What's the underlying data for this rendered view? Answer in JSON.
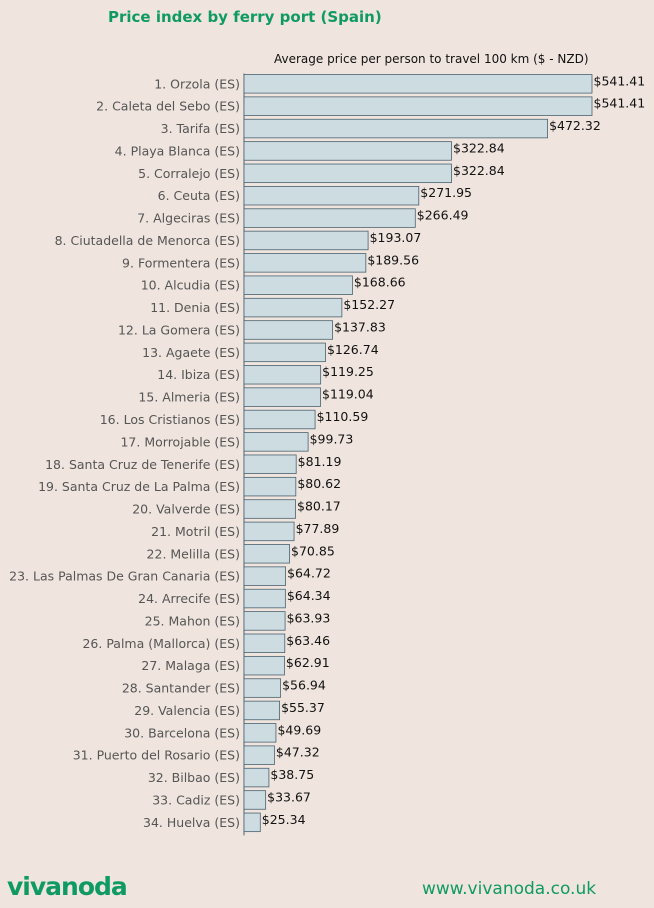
{
  "chart_data": {
    "type": "bar",
    "orientation": "horizontal",
    "title": "Price index by ferry port (Spain)",
    "subtitle": "Average price per person to travel 100 km ($ - NZD)",
    "value_prefix": "$",
    "bar_color": "#ccdce1",
    "bar_edge_color": "#4a6270",
    "title_color": "#0e9a62",
    "xlim": [
      0,
      541.41
    ],
    "grid": false,
    "categories": [
      "1. Orzola (ES)",
      "2. Caleta del Sebo (ES)",
      "3. Tarifa (ES)",
      "4. Playa Blanca (ES)",
      "5. Corralejo (ES)",
      "6. Ceuta (ES)",
      "7. Algeciras (ES)",
      "8. Ciutadella de Menorca (ES)",
      "9. Formentera (ES)",
      "10. Alcudia (ES)",
      "11. Denia (ES)",
      "12. La Gomera (ES)",
      "13. Agaete (ES)",
      "14. Ibiza (ES)",
      "15. Almeria (ES)",
      "16. Los Cristianos (ES)",
      "17. Morrojable (ES)",
      "18. Santa Cruz de Tenerife (ES)",
      "19. Santa Cruz de La Palma (ES)",
      "20. Valverde (ES)",
      "21. Motril (ES)",
      "22. Melilla (ES)",
      "23. Las Palmas De Gran Canaria (ES)",
      "24. Arrecife (ES)",
      "25. Mahon (ES)",
      "26. Palma (Mallorca) (ES)",
      "27. Malaga (ES)",
      "28. Santander (ES)",
      "29. Valencia (ES)",
      "30. Barcelona (ES)",
      "31. Puerto del Rosario (ES)",
      "32. Bilbao (ES)",
      "33. Cadiz (ES)",
      "34. Huelva (ES)"
    ],
    "values": [
      541.41,
      541.41,
      472.32,
      322.84,
      322.84,
      271.95,
      266.49,
      193.07,
      189.56,
      168.66,
      152.27,
      137.83,
      126.74,
      119.25,
      119.04,
      110.59,
      99.73,
      81.19,
      80.62,
      80.17,
      77.89,
      70.85,
      64.72,
      64.34,
      63.93,
      63.46,
      62.91,
      56.94,
      55.37,
      49.69,
      47.32,
      38.75,
      33.67,
      25.34
    ],
    "value_labels": [
      "$541.41",
      "$541.41",
      "$472.32",
      "$322.84",
      "$322.84",
      "$271.95",
      "$266.49",
      "$193.07",
      "$189.56",
      "$168.66",
      "$152.27",
      "$137.83",
      "$126.74",
      "$119.25",
      "$119.04",
      "$110.59",
      "$99.73",
      "$81.19",
      "$80.62",
      "$80.17",
      "$77.89",
      "$70.85",
      "$64.72",
      "$64.34",
      "$63.93",
      "$63.46",
      "$62.91",
      "$56.94",
      "$55.37",
      "$49.69",
      "$47.32",
      "$38.75",
      "$33.67",
      "$25.34"
    ]
  },
  "footer": {
    "logo_text": "vivanoda",
    "website": "www.vivanoda.co.uk"
  }
}
